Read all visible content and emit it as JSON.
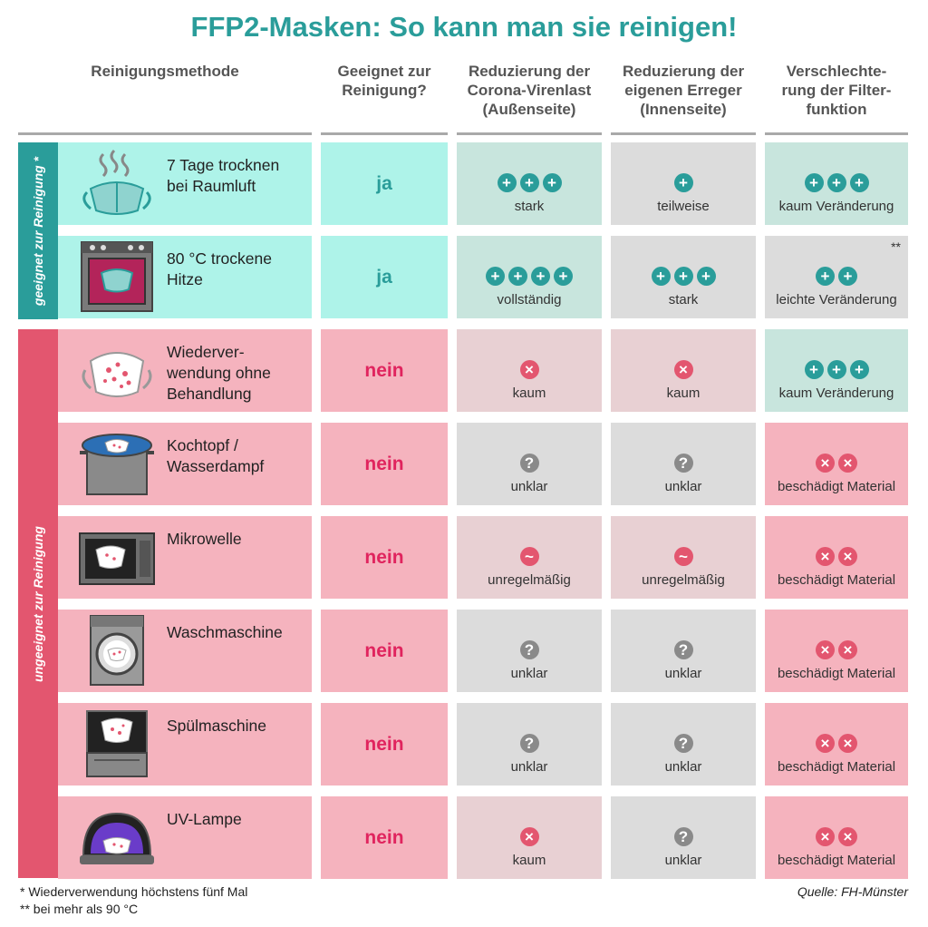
{
  "title": "FFP2-Masken: So kann man sie reinigen!",
  "headers": {
    "method": "Reinigungsmethode",
    "suitable": "Geeignet zur\nReinigung?",
    "outside": "Reduzierung der\nCorona-Virenlast\n(Außenseite)",
    "inside": "Reduzierung der\neigenen Erreger\n(Innenseite)",
    "filter": "Verschlechte-\nrung der Filter-\nfunktion"
  },
  "groups": {
    "suitable": "geeignet zur Reinigung *",
    "unsuitable": "ungeeignet zur Reinigung"
  },
  "colors": {
    "teal": "#2a9d9a",
    "pink": "#e3566f",
    "cell_teal": "#aef3e9",
    "cell_teal_muted": "#c8e5dd",
    "cell_grey": "#dcdcdc",
    "cell_pink": "#f5b3be",
    "cell_rose_grey": "#e8d0d3",
    "sym_grey": "#8a8a8a"
  },
  "rows": [
    {
      "method": "7 Tage trocknen\nbei Raumluft",
      "icon": "mask-steam-icon",
      "verdict": "ja",
      "outside": {
        "symbol": "plus",
        "count": 3,
        "label": "stark"
      },
      "inside": {
        "symbol": "plus",
        "count": 1,
        "label": "teilweise"
      },
      "filter": {
        "symbol": "plus",
        "count": 3,
        "label": "kaum Veränderung"
      }
    },
    {
      "method": "80 °C trockene\nHitze",
      "icon": "oven-icon",
      "verdict": "ja",
      "outside": {
        "symbol": "plus",
        "count": 4,
        "label": "vollständig"
      },
      "inside": {
        "symbol": "plus",
        "count": 3,
        "label": "stark"
      },
      "filter": {
        "symbol": "plus",
        "count": 2,
        "label": "leichte Veränderung",
        "note": "**"
      }
    },
    {
      "method": "Wiederver-\nwendung ohne\nBehandlung",
      "icon": "dirty-mask-icon",
      "verdict": "nein",
      "outside": {
        "symbol": "cross",
        "count": 1,
        "label": "kaum"
      },
      "inside": {
        "symbol": "cross",
        "count": 1,
        "label": "kaum"
      },
      "filter": {
        "symbol": "plus",
        "count": 3,
        "label": "kaum Veränderung"
      }
    },
    {
      "method": "Kochtopf /\nWasserdampf",
      "icon": "cooking-pot-icon",
      "verdict": "nein",
      "outside": {
        "symbol": "question",
        "count": 1,
        "label": "unklar"
      },
      "inside": {
        "symbol": "question",
        "count": 1,
        "label": "unklar"
      },
      "filter": {
        "symbol": "cross",
        "count": 2,
        "label": "beschädigt Material"
      }
    },
    {
      "method": "Mikrowelle",
      "icon": "microwave-icon",
      "verdict": "nein",
      "outside": {
        "symbol": "tilde",
        "count": 1,
        "label": "unregelmäßig"
      },
      "inside": {
        "symbol": "tilde",
        "count": 1,
        "label": "unregelmäßig"
      },
      "filter": {
        "symbol": "cross",
        "count": 2,
        "label": "beschädigt Material"
      }
    },
    {
      "method": "Waschmaschine",
      "icon": "washing-machine-icon",
      "verdict": "nein",
      "outside": {
        "symbol": "question",
        "count": 1,
        "label": "unklar"
      },
      "inside": {
        "symbol": "question",
        "count": 1,
        "label": "unklar"
      },
      "filter": {
        "symbol": "cross",
        "count": 2,
        "label": "beschädigt Material"
      }
    },
    {
      "method": "Spülmaschine",
      "icon": "dishwasher-icon",
      "verdict": "nein",
      "outside": {
        "symbol": "question",
        "count": 1,
        "label": "unklar"
      },
      "inside": {
        "symbol": "question",
        "count": 1,
        "label": "unklar"
      },
      "filter": {
        "symbol": "cross",
        "count": 2,
        "label": "beschädigt Material"
      }
    },
    {
      "method": "UV-Lampe",
      "icon": "uv-lamp-icon",
      "verdict": "nein",
      "outside": {
        "symbol": "cross",
        "count": 1,
        "label": "kaum"
      },
      "inside": {
        "symbol": "question",
        "count": 1,
        "label": "unklar"
      },
      "filter": {
        "symbol": "cross",
        "count": 2,
        "label": "beschädigt Material"
      }
    }
  ],
  "footnotes": {
    "one": "* Wiederverwendung höchstens fünf Mal",
    "two": "** bei mehr als 90 °C"
  },
  "source": "Quelle: FH-Münster"
}
